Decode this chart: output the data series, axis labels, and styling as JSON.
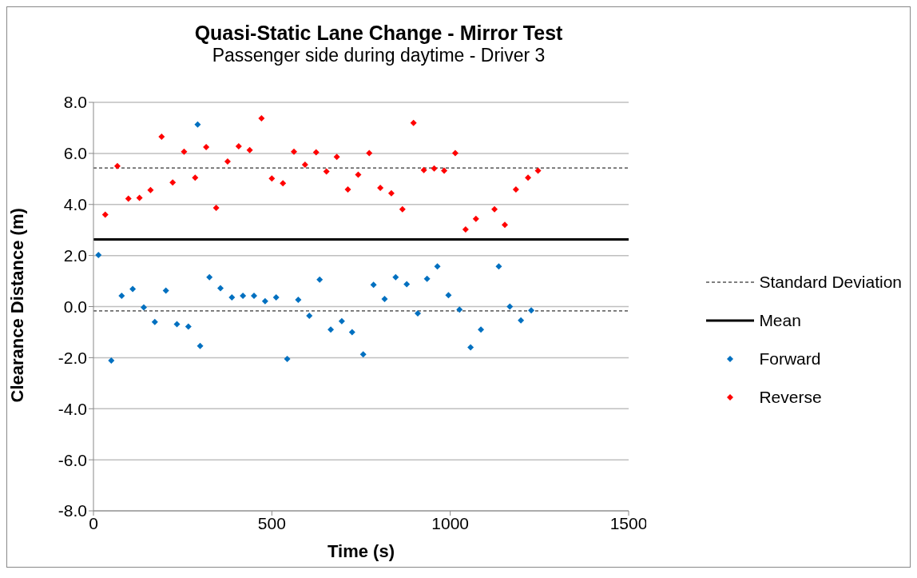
{
  "chart_data": {
    "type": "scatter",
    "title": "Quasi-Static Lane Change - Mirror Test",
    "subtitle": "Passenger side during daytime - Driver 3",
    "xlabel": "Time (s)",
    "ylabel": "Clearance Distance (m)",
    "xlim": [
      0,
      1500
    ],
    "xticks": [
      0,
      500,
      1000,
      1500
    ],
    "ylim": [
      -8,
      8
    ],
    "yticks": [
      {
        "value": -8,
        "label": "-8.0"
      },
      {
        "value": -6,
        "label": "-6.0"
      },
      {
        "value": -4,
        "label": "-4.0"
      },
      {
        "value": -2,
        "label": "-2.0"
      },
      {
        "value": 0,
        "label": "0.0"
      },
      {
        "value": 2,
        "label": "2.0"
      },
      {
        "value": 4,
        "label": "4.0"
      },
      {
        "value": 6,
        "label": "6.0"
      },
      {
        "value": 8,
        "label": "8.0"
      }
    ],
    "grid": "y",
    "legend": "right",
    "marker": "diamond",
    "ref_lines": [
      {
        "axis": "y",
        "value": 5.43,
        "label": "Standard Deviation",
        "color": "#000000",
        "line_style": "dashed"
      },
      {
        "axis": "y",
        "value": -0.17,
        "label": null,
        "color": "#000000",
        "line_style": "dashed"
      },
      {
        "axis": "y",
        "value": 2.63,
        "label": "Mean",
        "color": "#000000",
        "line_style": "solid"
      }
    ],
    "series": [
      {
        "name": "Forward",
        "color": "#0070c0",
        "x": [
          14,
          50,
          79,
          110,
          141,
          172,
          203,
          234,
          266,
          292,
          299,
          325,
          356,
          388,
          419,
          450,
          481,
          512,
          543,
          574,
          605,
          634,
          665,
          696,
          725,
          756,
          785,
          816,
          847,
          878,
          909,
          935,
          964,
          995,
          1026,
          1057,
          1086,
          1136,
          1167,
          1198,
          1227
        ],
        "values": [
          2.02,
          -2.11,
          0.42,
          0.69,
          -0.03,
          -0.6,
          0.63,
          -0.69,
          -0.78,
          7.13,
          -1.54,
          1.15,
          0.72,
          0.36,
          0.42,
          0.42,
          0.21,
          0.36,
          -2.05,
          0.27,
          -0.36,
          1.06,
          -0.9,
          -0.57,
          -1.0,
          -1.87,
          0.85,
          0.3,
          1.15,
          0.88,
          -0.27,
          1.09,
          1.57,
          0.45,
          -0.12,
          -1.6,
          -0.9,
          1.57,
          0.0,
          -0.54,
          -0.15
        ]
      },
      {
        "name": "Reverse",
        "color": "#ff0000",
        "x": [
          33,
          67,
          98,
          129,
          160,
          191,
          222,
          254,
          285,
          316,
          344,
          376,
          407,
          438,
          471,
          500,
          531,
          562,
          593,
          624,
          653,
          682,
          713,
          742,
          773,
          804,
          835,
          866,
          897,
          926,
          955,
          983,
          1014,
          1043,
          1072,
          1124,
          1153,
          1184,
          1218,
          1246
        ],
        "values": [
          3.6,
          5.5,
          4.23,
          4.26,
          4.56,
          6.65,
          4.86,
          6.07,
          5.05,
          6.25,
          3.87,
          5.68,
          6.28,
          6.13,
          7.37,
          5.02,
          4.83,
          6.07,
          5.56,
          6.04,
          5.29,
          5.86,
          4.59,
          5.17,
          6.01,
          4.65,
          4.44,
          3.81,
          7.19,
          5.35,
          5.41,
          5.32,
          6.01,
          3.02,
          3.44,
          3.81,
          3.2,
          4.59,
          5.05,
          5.32
        ]
      }
    ]
  }
}
